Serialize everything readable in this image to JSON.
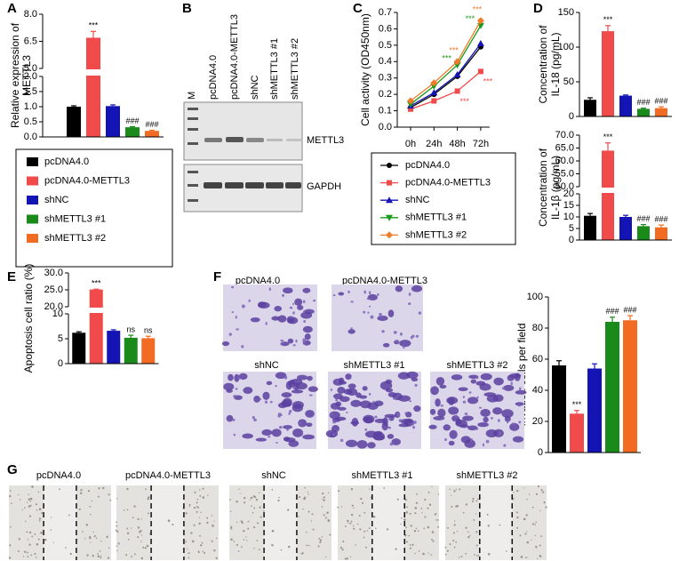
{
  "panel_labels": [
    "A",
    "B",
    "C",
    "D",
    "E",
    "F",
    "G"
  ],
  "blot": {
    "lanes": [
      "M",
      "pcDNA4.0",
      "pcDNA4.0-METTL3",
      "shNC",
      "shMETTL3 #1",
      "shMETTL3 #2"
    ],
    "bands": [
      "METTL3",
      "GAPDH"
    ]
  },
  "invasion_images": {
    "labels": [
      "pcDNA4.0",
      "pcDNA4.0-METTL3",
      "shNC",
      "shMETTL3 #1",
      "shMETTL3 #2"
    ]
  },
  "wound_images": {
    "labels": [
      "pcDNA4.0",
      "pcDNA4.0-METTL3",
      "shNC",
      "shMETTL3 #1",
      "shMETTL3 #2"
    ]
  },
  "chart_data": [
    {
      "type": "bar",
      "ylabel": [
        "Relative expression of",
        "METTL3"
      ],
      "categories": [
        "pcDNA4.0",
        "pcDNA4.0-METTL3",
        "shNC",
        "shMETTL3 #1",
        "shMETTL3 #2"
      ],
      "values": [
        1.0,
        6.7,
        1.02,
        0.32,
        0.2
      ],
      "errors": [
        0.03,
        0.35,
        0.04,
        0.02,
        0.02
      ],
      "colors": [
        "#000000",
        "#f04a4a",
        "#1414b4",
        "#1a8a1a",
        "#f26b22"
      ],
      "value_annotations": [
        null,
        "***",
        null,
        "###",
        "###"
      ],
      "y_segments": [
        {
          "ylim": [
            0,
            2
          ],
          "yticks": [
            {
              "value": 0,
              "label": "0.0"
            },
            {
              "value": 0.5,
              "label": "0.5"
            },
            {
              "value": 1,
              "label": "1.0"
            },
            {
              "value": 1.5,
              "label": "1.5"
            },
            {
              "value": 2,
              "label": "2.0"
            }
          ]
        },
        {
          "ylim": [
            5,
            8
          ],
          "yticks": [
            {
              "value": 5,
              "label": "5.0"
            },
            {
              "value": 6.5,
              "label": "6.5"
            },
            {
              "value": 8,
              "label": "8.0"
            }
          ]
        }
      ]
    },
    {
      "type": "line",
      "ylabel": "Cell activity (OD450nm)",
      "categories": [
        "0h",
        "24h",
        "48h",
        "72h"
      ],
      "ylim": [
        0,
        0.7
      ],
      "yticks": [
        {
          "value": 0,
          "label": "0.0"
        },
        0.1,
        0.2,
        0.3,
        0.4,
        0.5,
        0.6,
        0.7
      ],
      "series": [
        {
          "name": "pcDNA4.0",
          "color": "#000000",
          "marker": "circle",
          "values": [
            0.12,
            0.2,
            0.31,
            0.49
          ],
          "point_annotations": [
            null,
            null,
            null,
            null
          ]
        },
        {
          "name": "pcDNA4.0-METTL3",
          "color": "#f04a4a",
          "marker": "square",
          "values": [
            0.11,
            0.16,
            0.22,
            0.34
          ],
          "point_annotations": [
            null,
            null,
            "***",
            "***"
          ]
        },
        {
          "name": "shNC",
          "color": "#1414b4",
          "marker": "triangle-up",
          "values": [
            0.13,
            0.21,
            0.32,
            0.51
          ],
          "point_annotations": [
            null,
            null,
            null,
            null
          ]
        },
        {
          "name": "shMETTL3 #1",
          "color": "#1a9a1a",
          "marker": "triangle-down",
          "values": [
            0.14,
            0.25,
            0.38,
            0.62
          ],
          "point_annotations": [
            null,
            null,
            "***",
            "***"
          ]
        },
        {
          "name": "shMETTL3 #2",
          "color": "#f07c2a",
          "marker": "diamond",
          "values": [
            0.16,
            0.27,
            0.4,
            0.65
          ],
          "point_annotations": [
            null,
            null,
            "***",
            "***"
          ]
        }
      ]
    },
    {
      "type": "bar",
      "ylabel": [
        "Concentration of",
        "IL-18 (pg/mL)"
      ],
      "values": [
        24,
        123,
        30,
        11,
        12
      ],
      "errors": [
        3,
        8,
        1,
        1,
        2
      ],
      "colors": [
        "#000000",
        "#f04a4a",
        "#1414b4",
        "#1a8a1a",
        "#f26b22"
      ],
      "value_annotations": [
        null,
        "***",
        null,
        "###",
        "###"
      ],
      "ylim": [
        0,
        150
      ],
      "yticks": [
        0,
        50,
        100,
        150
      ]
    },
    {
      "type": "bar",
      "ylabel": [
        "Concentration of",
        "IL-1β (pg/mL)"
      ],
      "values": [
        10.5,
        64,
        10,
        6,
        5.5
      ],
      "errors": [
        1,
        3,
        0.7,
        0.7,
        1
      ],
      "colors": [
        "#000000",
        "#f04a4a",
        "#1414b4",
        "#1a8a1a",
        "#f26b22"
      ],
      "value_annotations": [
        null,
        "***",
        null,
        "###",
        "###"
      ],
      "y_segments": [
        {
          "ylim": [
            0,
            20
          ],
          "yticks": [
            0,
            5,
            10,
            15,
            20
          ]
        },
        {
          "ylim": [
            50,
            70
          ],
          "yticks": [
            {
              "value": 50,
              "label": "50.0"
            },
            {
              "value": 55,
              "label": "55.0"
            },
            {
              "value": 60,
              "label": "60.0"
            },
            {
              "value": 65,
              "label": "65.0"
            },
            {
              "value": 70,
              "label": "70.0"
            }
          ]
        }
      ]
    },
    {
      "type": "bar",
      "ylabel": "Apoptosis cell ratio (%)",
      "values": [
        6.2,
        25.1,
        6.6,
        5.2,
        5.1
      ],
      "errors": [
        0.2,
        0.1,
        0.2,
        0.5,
        0.4
      ],
      "colors": [
        "#000000",
        "#f04a4a",
        "#1414b4",
        "#1a8a1a",
        "#f26b22"
      ],
      "value_annotations": [
        null,
        "***",
        null,
        "ns",
        "ns"
      ],
      "y_segments": [
        {
          "ylim": [
            0,
            10
          ],
          "yticks": [
            0,
            5,
            10
          ]
        },
        {
          "ylim": [
            20,
            30
          ],
          "yticks": [
            {
              "value": 20,
              "label": "20.0"
            },
            {
              "value": 25,
              "label": "25.0"
            },
            {
              "value": 30,
              "label": "30.0"
            }
          ]
        }
      ]
    },
    {
      "type": "bar",
      "ylabel": "Invaded cells per field",
      "values": [
        56,
        25,
        54,
        84,
        85
      ],
      "errors": [
        3,
        2,
        3,
        3,
        3
      ],
      "colors": [
        "#000000",
        "#f04a4a",
        "#1414b4",
        "#1a8a1a",
        "#f26b22"
      ],
      "value_annotations": [
        null,
        "***",
        null,
        "###",
        "###"
      ],
      "ylim": [
        0,
        100
      ],
      "yticks": [
        0,
        20,
        40,
        60,
        80,
        100
      ]
    }
  ]
}
